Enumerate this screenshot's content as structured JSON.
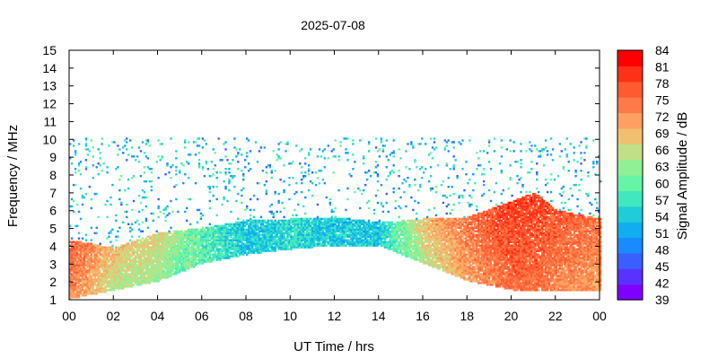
{
  "chart_data": {
    "type": "heatmap",
    "title": "2025-07-08",
    "xlabel": "UT Time / hrs",
    "ylabel": "Frequency / MHz",
    "xlim": [
      0,
      24
    ],
    "ylim": [
      1,
      15
    ],
    "x_ticks": [
      "00",
      "02",
      "04",
      "06",
      "08",
      "10",
      "12",
      "14",
      "16",
      "18",
      "20",
      "22",
      "00"
    ],
    "y_ticks": [
      "1",
      "2",
      "3",
      "4",
      "5",
      "6",
      "7",
      "8",
      "9",
      "10",
      "11",
      "12",
      "13",
      "14",
      "15"
    ],
    "grid": false,
    "colorbar": {
      "label": "Signal Amplitude / dB",
      "range": [
        39,
        84
      ],
      "ticks": [
        "84",
        "81",
        "78",
        "75",
        "72",
        "69",
        "66",
        "63",
        "60",
        "57",
        "54",
        "51",
        "48",
        "45",
        "42",
        "39"
      ],
      "colors": [
        "#8000ff",
        "#5a32ff",
        "#3a5eff",
        "#1a8aff",
        "#10aef0",
        "#20ccd8",
        "#40e8c0",
        "#66f4a6",
        "#90f096",
        "#c0e088",
        "#f0c070",
        "#ffa060",
        "#ff7a48",
        "#ff5a30",
        "#ff3018",
        "#ff0000"
      ]
    },
    "amplitude_profile_db": [
      {
        "time": 0,
        "min_freq_mhz": 1.0,
        "max_freq_mhz": 4.3,
        "peak_db": 80
      },
      {
        "time": 2,
        "min_freq_mhz": 1.5,
        "max_freq_mhz": 3.9,
        "peak_db": 72
      },
      {
        "time": 4,
        "min_freq_mhz": 2.0,
        "max_freq_mhz": 4.7,
        "peak_db": 70
      },
      {
        "time": 6,
        "min_freq_mhz": 3.0,
        "max_freq_mhz": 5.0,
        "peak_db": 63
      },
      {
        "time": 8,
        "min_freq_mhz": 3.5,
        "max_freq_mhz": 5.4,
        "peak_db": 58
      },
      {
        "time": 10,
        "min_freq_mhz": 3.8,
        "max_freq_mhz": 5.5,
        "peak_db": 60
      },
      {
        "time": 12,
        "min_freq_mhz": 4.0,
        "max_freq_mhz": 5.6,
        "peak_db": 58
      },
      {
        "time": 14,
        "min_freq_mhz": 4.0,
        "max_freq_mhz": 5.3,
        "peak_db": 58
      },
      {
        "time": 16,
        "min_freq_mhz": 3.0,
        "max_freq_mhz": 5.5,
        "peak_db": 72
      },
      {
        "time": 18,
        "min_freq_mhz": 2.0,
        "max_freq_mhz": 5.6,
        "peak_db": 78
      },
      {
        "time": 20,
        "min_freq_mhz": 1.5,
        "max_freq_mhz": 6.5,
        "peak_db": 82
      },
      {
        "time": 21,
        "min_freq_mhz": 1.5,
        "max_freq_mhz": 7.0,
        "peak_db": 82
      },
      {
        "time": 22,
        "min_freq_mhz": 1.5,
        "max_freq_mhz": 6.0,
        "peak_db": 80
      },
      {
        "time": 24,
        "min_freq_mhz": 1.5,
        "max_freq_mhz": 5.5,
        "peak_db": 78
      }
    ]
  }
}
